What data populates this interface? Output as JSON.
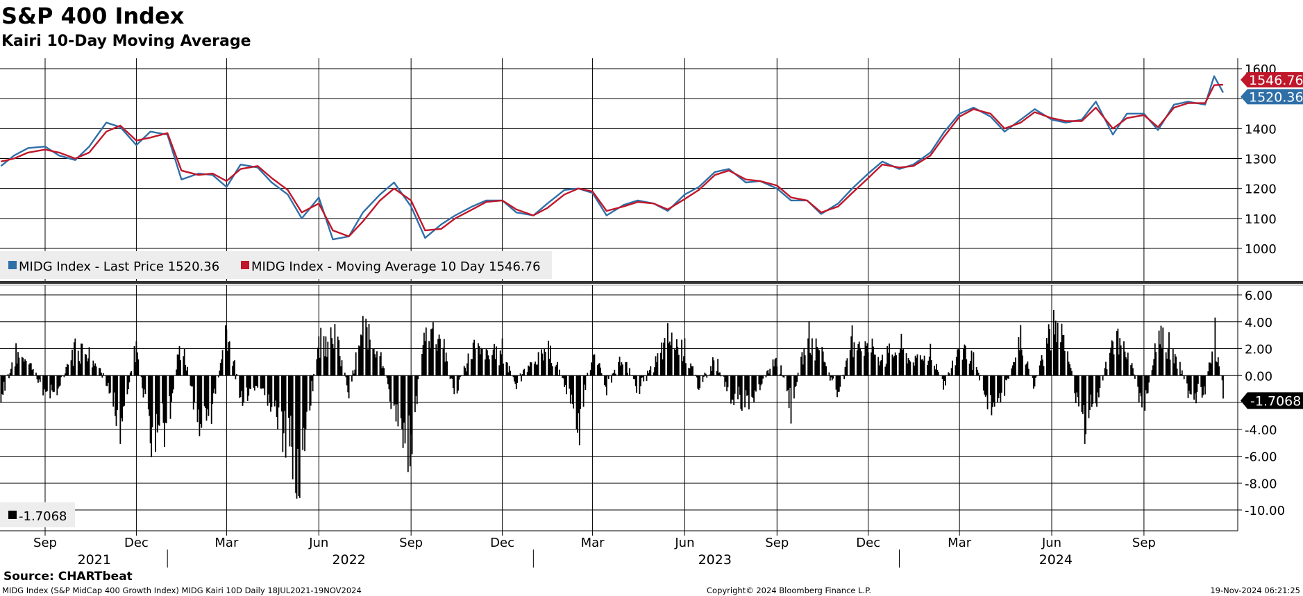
{
  "title": "S&P 400 Index",
  "subtitle": "Kairi 10-Day Moving Average",
  "source": "Source: CHARTbeat",
  "footer": {
    "left": "MIDG Index (S&P MidCap 400 Growth Index) MIDG Kairi 10D  Daily 18JUL2021-19NOV2024",
    "center": "Copyright© 2024 Bloomberg Finance L.P.",
    "right": "19-Nov-2024 06:21:25"
  },
  "colors": {
    "price": "#2f6fa8",
    "ma": "#c0172a",
    "bars": "#000000",
    "grid": "#000000"
  },
  "chart_data": [
    {
      "type": "line",
      "panel": "price",
      "legend": [
        "MIDG Index - Last Price 1520.36",
        "MIDG Index - Moving Average 10 Day 1546.76"
      ],
      "last_value_flags": [
        "1546.76",
        "1520.36"
      ],
      "ylim": [
        900,
        1600
      ],
      "yticks": [
        "1600",
        "1500",
        "1400",
        "1300",
        "1200",
        "1100",
        "1000"
      ],
      "x_range": [
        "2021-07-18",
        "2024-11-19"
      ],
      "series": [
        {
          "name": "MIDG Index - Last Price",
          "x": [
            "2021-07-19",
            "2021-08-01",
            "2021-08-15",
            "2021-09-01",
            "2021-09-15",
            "2021-10-01",
            "2021-10-15",
            "2021-11-01",
            "2021-11-15",
            "2021-12-01",
            "2021-12-15",
            "2022-01-01",
            "2022-01-15",
            "2022-02-01",
            "2022-02-15",
            "2022-03-01",
            "2022-03-15",
            "2022-04-01",
            "2022-04-15",
            "2022-05-01",
            "2022-05-15",
            "2022-06-01",
            "2022-06-15",
            "2022-07-01",
            "2022-07-15",
            "2022-08-01",
            "2022-08-15",
            "2022-09-01",
            "2022-09-15",
            "2022-10-01",
            "2022-10-15",
            "2022-11-01",
            "2022-11-15",
            "2022-12-01",
            "2022-12-15",
            "2023-01-01",
            "2023-01-15",
            "2023-02-01",
            "2023-02-15",
            "2023-03-01",
            "2023-03-15",
            "2023-04-01",
            "2023-04-15",
            "2023-05-01",
            "2023-05-15",
            "2023-06-01",
            "2023-06-15",
            "2023-07-01",
            "2023-07-15",
            "2023-08-01",
            "2023-08-15",
            "2023-09-01",
            "2023-09-15",
            "2023-10-01",
            "2023-10-15",
            "2023-11-01",
            "2023-11-15",
            "2023-12-01",
            "2023-12-15",
            "2024-01-01",
            "2024-01-15",
            "2024-02-01",
            "2024-02-15",
            "2024-03-01",
            "2024-03-15",
            "2024-04-01",
            "2024-04-15",
            "2024-05-01",
            "2024-05-15",
            "2024-06-01",
            "2024-06-15",
            "2024-07-01",
            "2024-07-15",
            "2024-08-01",
            "2024-08-15",
            "2024-09-01",
            "2024-09-15",
            "2024-10-01",
            "2024-10-15",
            "2024-11-01",
            "2024-11-10",
            "2024-11-19"
          ],
          "values": [
            1275,
            1310,
            1335,
            1340,
            1310,
            1295,
            1340,
            1420,
            1405,
            1345,
            1390,
            1380,
            1230,
            1250,
            1245,
            1205,
            1280,
            1270,
            1220,
            1180,
            1100,
            1170,
            1030,
            1040,
            1120,
            1180,
            1220,
            1140,
            1035,
            1080,
            1110,
            1140,
            1160,
            1160,
            1120,
            1110,
            1150,
            1195,
            1200,
            1185,
            1110,
            1145,
            1160,
            1150,
            1125,
            1180,
            1205,
            1255,
            1265,
            1220,
            1225,
            1200,
            1160,
            1160,
            1115,
            1150,
            1200,
            1250,
            1290,
            1265,
            1280,
            1320,
            1390,
            1450,
            1470,
            1440,
            1390,
            1430,
            1465,
            1430,
            1420,
            1430,
            1490,
            1380,
            1450,
            1450,
            1395,
            1480,
            1490,
            1480,
            1575,
            1520.36
          ]
        },
        {
          "name": "MIDG Index - Moving Average 10 Day",
          "x": [
            "2021-07-19",
            "2021-08-01",
            "2021-08-15",
            "2021-09-01",
            "2021-09-15",
            "2021-10-01",
            "2021-10-15",
            "2021-11-01",
            "2021-11-15",
            "2021-12-01",
            "2021-12-15",
            "2022-01-01",
            "2022-01-15",
            "2022-02-01",
            "2022-02-15",
            "2022-03-01",
            "2022-03-15",
            "2022-04-01",
            "2022-04-15",
            "2022-05-01",
            "2022-05-15",
            "2022-06-01",
            "2022-06-15",
            "2022-07-01",
            "2022-07-15",
            "2022-08-01",
            "2022-08-15",
            "2022-09-01",
            "2022-09-15",
            "2022-10-01",
            "2022-10-15",
            "2022-11-01",
            "2022-11-15",
            "2022-12-01",
            "2022-12-15",
            "2023-01-01",
            "2023-01-15",
            "2023-02-01",
            "2023-02-15",
            "2023-03-01",
            "2023-03-15",
            "2023-04-01",
            "2023-04-15",
            "2023-05-01",
            "2023-05-15",
            "2023-06-01",
            "2023-06-15",
            "2023-07-01",
            "2023-07-15",
            "2023-08-01",
            "2023-08-15",
            "2023-09-01",
            "2023-09-15",
            "2023-10-01",
            "2023-10-15",
            "2023-11-01",
            "2023-11-15",
            "2023-12-01",
            "2023-12-15",
            "2024-01-01",
            "2024-01-15",
            "2024-02-01",
            "2024-02-15",
            "2024-03-01",
            "2024-03-15",
            "2024-04-01",
            "2024-04-15",
            "2024-05-01",
            "2024-05-15",
            "2024-06-01",
            "2024-06-15",
            "2024-07-01",
            "2024-07-15",
            "2024-08-01",
            "2024-08-15",
            "2024-09-01",
            "2024-09-15",
            "2024-10-01",
            "2024-10-15",
            "2024-11-01",
            "2024-11-10",
            "2024-11-19"
          ],
          "values": [
            1290,
            1300,
            1320,
            1330,
            1320,
            1300,
            1320,
            1390,
            1410,
            1360,
            1370,
            1385,
            1260,
            1245,
            1250,
            1225,
            1265,
            1275,
            1235,
            1195,
            1120,
            1150,
            1060,
            1040,
            1090,
            1160,
            1200,
            1160,
            1060,
            1065,
            1100,
            1130,
            1155,
            1160,
            1130,
            1110,
            1135,
            1180,
            1200,
            1190,
            1125,
            1140,
            1155,
            1150,
            1130,
            1165,
            1195,
            1245,
            1260,
            1230,
            1225,
            1210,
            1170,
            1160,
            1120,
            1140,
            1185,
            1235,
            1280,
            1270,
            1275,
            1310,
            1375,
            1440,
            1465,
            1450,
            1400,
            1420,
            1455,
            1435,
            1425,
            1425,
            1470,
            1400,
            1435,
            1445,
            1405,
            1470,
            1485,
            1485,
            1545,
            1546.76
          ]
        }
      ]
    },
    {
      "type": "bar",
      "panel": "kairi",
      "legend": [
        "-1.7068"
      ],
      "last_value_flags": [
        "-1.7068"
      ],
      "ylim": [
        -11.2,
        6.3
      ],
      "yticks": [
        "6.00",
        "4.00",
        "2.00",
        "0.00",
        "-2.00",
        "-4.00",
        "-6.00",
        "-8.00",
        "-10.00"
      ],
      "x_range": [
        "2021-07-18",
        "2024-11-19"
      ],
      "x": [
        "2021-07-19",
        "2021-08-01",
        "2021-08-15",
        "2021-09-01",
        "2021-09-15",
        "2021-10-01",
        "2021-10-15",
        "2021-11-01",
        "2021-11-15",
        "2021-12-01",
        "2021-12-15",
        "2022-01-01",
        "2022-01-15",
        "2022-02-01",
        "2022-02-15",
        "2022-03-01",
        "2022-03-15",
        "2022-04-01",
        "2022-04-15",
        "2022-05-01",
        "2022-05-15",
        "2022-06-01",
        "2022-06-15",
        "2022-07-01",
        "2022-07-15",
        "2022-08-01",
        "2022-08-15",
        "2022-09-01",
        "2022-09-15",
        "2022-10-01",
        "2022-10-15",
        "2022-11-01",
        "2022-11-15",
        "2022-12-01",
        "2022-12-15",
        "2023-01-01",
        "2023-01-15",
        "2023-02-01",
        "2023-02-15",
        "2023-03-01",
        "2023-03-15",
        "2023-04-01",
        "2023-04-15",
        "2023-05-01",
        "2023-05-15",
        "2023-06-01",
        "2023-06-15",
        "2023-07-01",
        "2023-07-15",
        "2023-08-01",
        "2023-08-15",
        "2023-09-01",
        "2023-09-15",
        "2023-10-01",
        "2023-10-15",
        "2023-11-01",
        "2023-11-15",
        "2023-12-01",
        "2023-12-15",
        "2024-01-01",
        "2024-01-15",
        "2024-02-01",
        "2024-02-15",
        "2024-03-01",
        "2024-03-15",
        "2024-04-01",
        "2024-04-15",
        "2024-05-01",
        "2024-05-15",
        "2024-06-01",
        "2024-06-15",
        "2024-07-01",
        "2024-07-15",
        "2024-08-01",
        "2024-08-15",
        "2024-09-01",
        "2024-09-15",
        "2024-10-01",
        "2024-10-15",
        "2024-11-01",
        "2024-11-10",
        "2024-11-19"
      ],
      "values": [
        -2.5,
        1.8,
        1.5,
        -1.5,
        -1.2,
        2.6,
        2.3,
        -0.8,
        -4.5,
        2.7,
        -5.5,
        -4.2,
        3.2,
        -4.5,
        -3.0,
        4.6,
        -2.2,
        -1.2,
        -2.5,
        -6.5,
        -8.5,
        3.0,
        4.5,
        -1.5,
        4.0,
        2.5,
        -3.5,
        -6.2,
        4.2,
        3.8,
        -2.0,
        2.5,
        1.8,
        2.2,
        -0.8,
        1.2,
        2.6,
        -0.8,
        -4.5,
        2.2,
        -1.0,
        1.5,
        -1.2,
        0.8,
        3.2,
        2.5,
        -0.9,
        1.5,
        -1.5,
        -2.5,
        -1.2,
        2.0,
        -2.8,
        3.3,
        2.5,
        -2.2,
        3.5,
        2.5,
        1.5,
        2.5,
        1.2,
        2.0,
        -1.0,
        2.8,
        1.5,
        -3.0,
        -1.2,
        3.0,
        -0.8,
        4.5,
        2.7,
        -4.5,
        -2.5,
        3.5,
        2.0,
        -3.0,
        3.5,
        2.5,
        -1.5,
        -1.8,
        4.3,
        -1.7068
      ]
    }
  ],
  "x_axis": {
    "months": [
      "Sep",
      "Dec",
      "Mar",
      "Jun",
      "Sep",
      "Dec",
      "Mar",
      "Jun",
      "Sep",
      "Dec",
      "Mar",
      "Jun",
      "Sep"
    ],
    "years": [
      "2021",
      "2022",
      "2023",
      "2024"
    ]
  }
}
